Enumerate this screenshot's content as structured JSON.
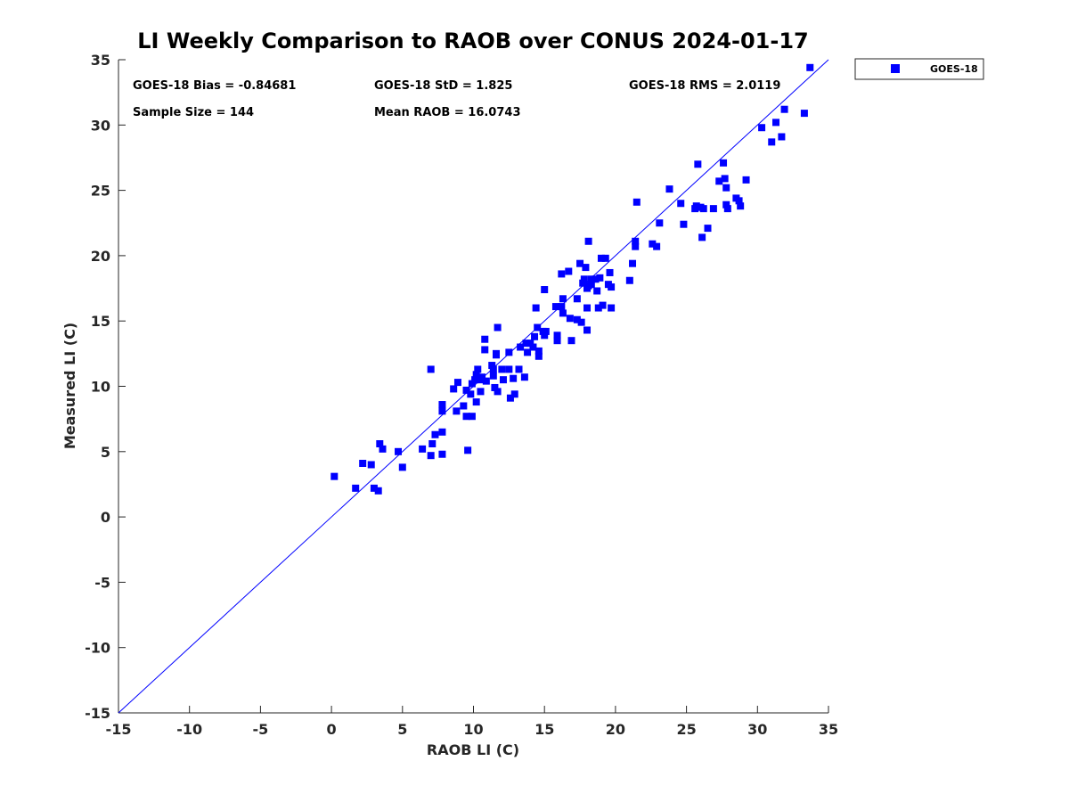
{
  "chart_data": {
    "type": "scatter",
    "title": "LI Weekly Comparison to RAOB over CONUS 2024-01-17",
    "xlabel": "RAOB LI (C)",
    "ylabel": "Measured LI (C)",
    "xlim": [
      -15,
      35
    ],
    "ylim": [
      -15,
      35
    ],
    "xticks": [
      "-15",
      "-10",
      "-5",
      "0",
      "5",
      "10",
      "15",
      "20",
      "25",
      "30",
      "35"
    ],
    "yticks": [
      "-15",
      "-10",
      "-5",
      "0",
      "5",
      "10",
      "15",
      "20",
      "25",
      "30",
      "35"
    ],
    "grid": false,
    "legend_position": "outside-top-right",
    "stats": {
      "bias": "GOES-18 Bias = -0.84681",
      "std": "GOES-18 StD = 1.825",
      "rms": "GOES-18 RMS = 2.0119",
      "sample_size": "Sample Size = 144",
      "mean_raob": "Mean RAOB = 16.0743"
    },
    "reference_line": {
      "name": "1:1 line",
      "from": [
        -15,
        -15
      ],
      "to": [
        35,
        35
      ],
      "color": "#0000ff"
    },
    "series": [
      {
        "name": "GOES-18",
        "color": "#0000ff",
        "marker": "square",
        "points": [
          [
            0.2,
            3.1
          ],
          [
            1.7,
            2.2
          ],
          [
            2.2,
            4.1
          ],
          [
            2.8,
            4.0
          ],
          [
            3.0,
            2.2
          ],
          [
            3.3,
            2.0
          ],
          [
            3.4,
            5.6
          ],
          [
            3.6,
            5.2
          ],
          [
            4.7,
            5.0
          ],
          [
            5.0,
            3.8
          ],
          [
            6.4,
            5.2
          ],
          [
            7.0,
            4.7
          ],
          [
            7.0,
            11.3
          ],
          [
            7.1,
            5.6
          ],
          [
            7.3,
            6.3
          ],
          [
            7.8,
            4.8
          ],
          [
            7.8,
            6.5
          ],
          [
            7.8,
            8.1
          ],
          [
            7.8,
            8.6
          ],
          [
            8.6,
            9.8
          ],
          [
            8.8,
            8.1
          ],
          [
            8.9,
            10.3
          ],
          [
            9.3,
            8.5
          ],
          [
            9.5,
            9.7
          ],
          [
            9.5,
            7.7
          ],
          [
            9.6,
            5.1
          ],
          [
            9.8,
            9.4
          ],
          [
            9.9,
            10.2
          ],
          [
            9.9,
            7.7
          ],
          [
            10.1,
            10.5
          ],
          [
            10.2,
            8.8
          ],
          [
            10.2,
            10.9
          ],
          [
            10.3,
            11.3
          ],
          [
            10.5,
            10.5
          ],
          [
            10.5,
            9.6
          ],
          [
            10.6,
            10.7
          ],
          [
            10.8,
            13.6
          ],
          [
            10.8,
            12.8
          ],
          [
            10.9,
            10.4
          ],
          [
            11.3,
            11.6
          ],
          [
            11.4,
            10.8
          ],
          [
            11.4,
            11.3
          ],
          [
            11.5,
            9.9
          ],
          [
            11.6,
            12.4
          ],
          [
            11.6,
            12.5
          ],
          [
            11.7,
            14.5
          ],
          [
            11.7,
            9.6
          ],
          [
            12.0,
            11.3
          ],
          [
            12.1,
            10.5
          ],
          [
            12.5,
            11.3
          ],
          [
            12.5,
            12.6
          ],
          [
            12.6,
            9.1
          ],
          [
            12.8,
            10.6
          ],
          [
            12.9,
            9.4
          ],
          [
            13.2,
            11.3
          ],
          [
            13.3,
            13.0
          ],
          [
            13.6,
            10.7
          ],
          [
            13.7,
            13.3
          ],
          [
            13.8,
            12.6
          ],
          [
            14.0,
            13.3
          ],
          [
            14.2,
            13.0
          ],
          [
            14.3,
            13.8
          ],
          [
            14.4,
            16.0
          ],
          [
            14.5,
            14.5
          ],
          [
            14.6,
            12.7
          ],
          [
            14.6,
            12.3
          ],
          [
            14.9,
            14.2
          ],
          [
            15.0,
            17.4
          ],
          [
            15.0,
            13.9
          ],
          [
            15.1,
            14.2
          ],
          [
            15.8,
            16.1
          ],
          [
            15.9,
            13.9
          ],
          [
            15.9,
            13.5
          ],
          [
            16.2,
            18.6
          ],
          [
            16.2,
            16.1
          ],
          [
            16.3,
            16.7
          ],
          [
            16.3,
            15.6
          ],
          [
            16.7,
            18.8
          ],
          [
            16.8,
            15.2
          ],
          [
            16.9,
            13.5
          ],
          [
            17.3,
            16.7
          ],
          [
            17.3,
            15.1
          ],
          [
            17.5,
            19.4
          ],
          [
            17.6,
            14.9
          ],
          [
            17.7,
            17.9
          ],
          [
            17.8,
            18.2
          ],
          [
            17.9,
            19.1
          ],
          [
            18.0,
            17.5
          ],
          [
            18.0,
            14.3
          ],
          [
            18.0,
            16.0
          ],
          [
            18.1,
            17.7
          ],
          [
            18.1,
            21.1
          ],
          [
            18.3,
            17.8
          ],
          [
            18.3,
            18.2
          ],
          [
            18.6,
            18.2
          ],
          [
            18.7,
            17.3
          ],
          [
            18.8,
            16.0
          ],
          [
            18.9,
            18.3
          ],
          [
            19.0,
            19.8
          ],
          [
            19.1,
            16.2
          ],
          [
            19.3,
            19.8
          ],
          [
            19.5,
            17.8
          ],
          [
            19.6,
            18.7
          ],
          [
            19.7,
            17.6
          ],
          [
            19.7,
            16.0
          ],
          [
            21.0,
            18.1
          ],
          [
            21.2,
            19.4
          ],
          [
            21.4,
            20.7
          ],
          [
            21.4,
            21.1
          ],
          [
            21.5,
            24.1
          ],
          [
            22.6,
            20.9
          ],
          [
            22.9,
            20.7
          ],
          [
            23.1,
            22.5
          ],
          [
            23.8,
            25.1
          ],
          [
            24.6,
            24.0
          ],
          [
            24.8,
            22.4
          ],
          [
            25.6,
            23.6
          ],
          [
            25.7,
            23.8
          ],
          [
            25.8,
            27.0
          ],
          [
            26.0,
            23.7
          ],
          [
            26.1,
            21.4
          ],
          [
            26.2,
            23.6
          ],
          [
            26.5,
            22.1
          ],
          [
            26.9,
            23.6
          ],
          [
            27.3,
            25.7
          ],
          [
            27.6,
            27.1
          ],
          [
            27.7,
            25.9
          ],
          [
            27.8,
            25.2
          ],
          [
            27.8,
            23.9
          ],
          [
            27.9,
            23.6
          ],
          [
            28.5,
            24.4
          ],
          [
            28.7,
            24.2
          ],
          [
            28.8,
            23.8
          ],
          [
            29.2,
            25.8
          ],
          [
            30.3,
            29.8
          ],
          [
            31.0,
            28.7
          ],
          [
            31.3,
            30.2
          ],
          [
            31.7,
            29.1
          ],
          [
            31.9,
            31.2
          ],
          [
            33.3,
            30.9
          ],
          [
            33.7,
            34.4
          ]
        ]
      }
    ]
  }
}
